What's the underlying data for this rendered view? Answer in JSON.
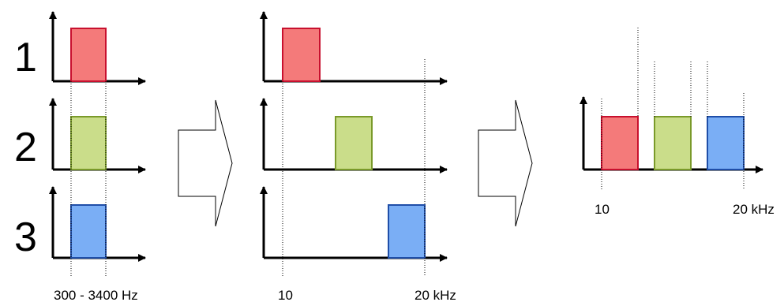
{
  "channels": [
    {
      "number": "1",
      "fill": "#f47a7a",
      "stroke": "#c8102e"
    },
    {
      "number": "2",
      "fill": "#cadd8a",
      "stroke": "#7a9a2a"
    },
    {
      "number": "3",
      "fill": "#7aaef5",
      "stroke": "#1f4ea8"
    }
  ],
  "labels": {
    "baseband_range": "300 - 3400 Hz",
    "shifted_low": "10",
    "shifted_high": "20 kHz",
    "combined_low": "10",
    "combined_high": "20 kHz"
  }
}
